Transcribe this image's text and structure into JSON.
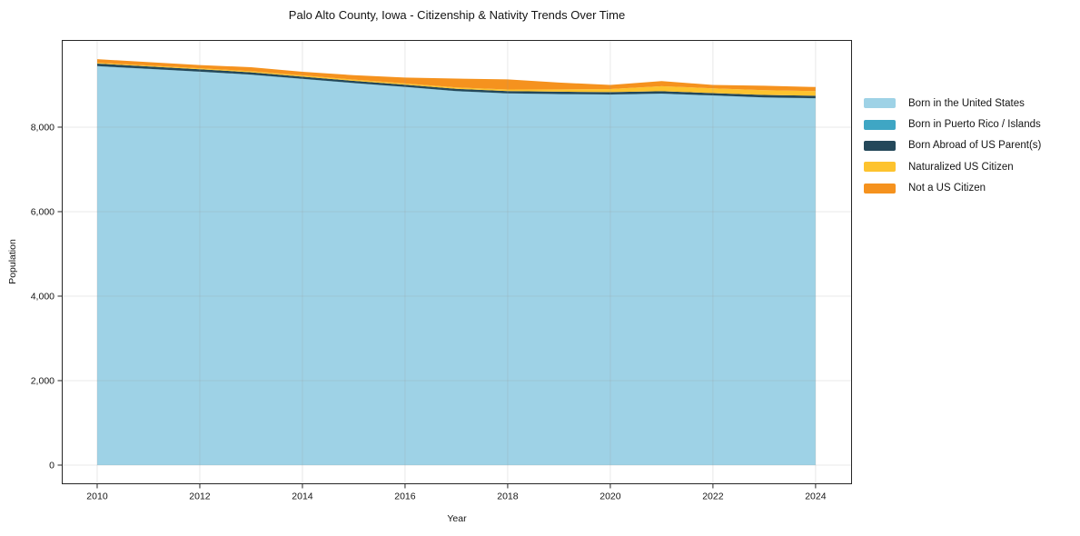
{
  "figure": {
    "title": "Palo Alto County, Iowa - Citizenship & Nativity Trends Over Time",
    "background_color": "#ffffff",
    "spine_color": "#262626",
    "grid_color": "#999999"
  },
  "chart_data": {
    "type": "area",
    "stacked": true,
    "title": "Palo Alto County, Iowa - Citizenship & Nativity Trends Over Time",
    "xlabel": "Year",
    "ylabel": "Population",
    "grid": true,
    "legend_position": "right-outside",
    "x": [
      2010,
      2011,
      2012,
      2013,
      2014,
      2015,
      2016,
      2017,
      2018,
      2019,
      2020,
      2021,
      2022,
      2023,
      2024
    ],
    "series": [
      {
        "name": "Born in the United States",
        "color": "#9ED2E6",
        "values": [
          9440,
          9375,
          9310,
          9240,
          9140,
          9040,
          8950,
          8850,
          8795,
          8780,
          8768,
          8789,
          8746,
          8700,
          8680
        ]
      },
      {
        "name": "Born in Puerto Rico / Islands",
        "color": "#3FA6C4",
        "values": [
          5,
          5,
          5,
          5,
          5,
          5,
          5,
          5,
          5,
          5,
          5,
          5,
          5,
          5,
          5
        ]
      },
      {
        "name": "Born Abroad of US Parent(s)",
        "color": "#24485A",
        "values": [
          60,
          58,
          56,
          54,
          52,
          50,
          50,
          52,
          54,
          55,
          57,
          57,
          56,
          58,
          60
        ]
      },
      {
        "name": "Naturalized US Citizen",
        "color": "#FDC32E",
        "values": [
          20,
          22,
          24,
          26,
          28,
          30,
          30,
          33,
          38,
          55,
          72,
          120,
          113,
          112,
          110
        ]
      },
      {
        "name": "Not a US Citizen",
        "color": "#F5921E",
        "values": [
          85,
          80,
          75,
          95,
          85,
          105,
          140,
          210,
          238,
          160,
          98,
          119,
          80,
          105,
          95
        ]
      }
    ],
    "xticks": {
      "values": [
        2010,
        2012,
        2014,
        2016,
        2018,
        2020,
        2022,
        2024
      ],
      "labels": [
        "2010",
        "2012",
        "2014",
        "2016",
        "2018",
        "2020",
        "2022",
        "2024"
      ]
    },
    "yticks": {
      "values": [
        0,
        2000,
        4000,
        6000,
        8000
      ],
      "labels": [
        "0",
        "2,000",
        "4,000",
        "6,000",
        "8,000"
      ]
    },
    "xlim": [
      2009.31,
      2024.71
    ],
    "ylim": [
      -452,
      10064
    ]
  }
}
